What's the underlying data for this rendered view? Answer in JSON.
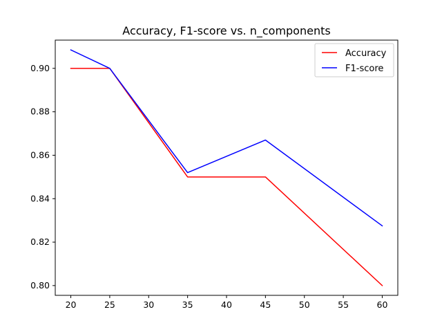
{
  "chart_data": {
    "type": "line",
    "title": "Accuracy, F1-score vs. n_components",
    "xlabel": "",
    "ylabel": "",
    "x": [
      20,
      25,
      35,
      45,
      60
    ],
    "series": [
      {
        "name": "Accuracy",
        "color": "#ff0000",
        "values": [
          0.9,
          0.9,
          0.85,
          0.85,
          0.8
        ]
      },
      {
        "name": "F1-score",
        "color": "#0000ff",
        "values": [
          0.9085,
          0.9,
          0.852,
          0.867,
          0.8275
        ]
      }
    ],
    "xticks": [
      "20",
      "25",
      "30",
      "35",
      "40",
      "45",
      "50",
      "55",
      "60"
    ],
    "yticks": [
      "0.80",
      "0.82",
      "0.84",
      "0.86",
      "0.88",
      "0.90"
    ],
    "xlim": [
      18,
      62
    ],
    "ylim": [
      0.7955,
      0.913
    ],
    "grid": false,
    "legend_position": "top-right"
  }
}
